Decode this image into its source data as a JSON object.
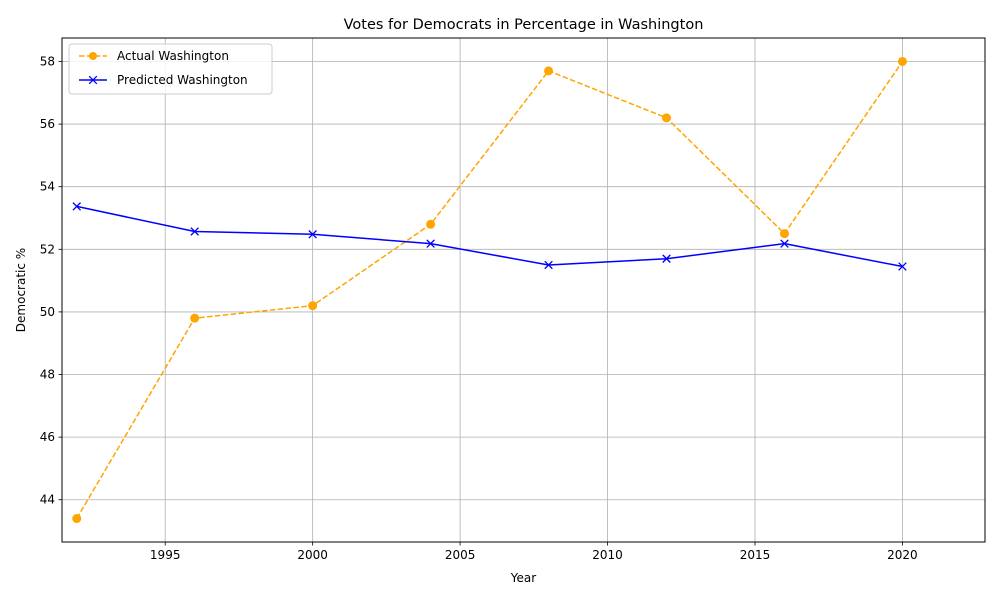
{
  "chart_data": {
    "type": "line",
    "title": "Votes for Democrats in Percentage in Washington",
    "xlabel": "Year",
    "ylabel": "Democratic %",
    "xlim": [
      1991.5,
      2022.8
    ],
    "ylim": [
      42.65,
      58.75
    ],
    "xticks": [
      1995,
      2000,
      2005,
      2010,
      2015,
      2020
    ],
    "yticks": [
      44,
      46,
      48,
      50,
      52,
      54,
      56,
      58
    ],
    "grid": true,
    "legend_position": "top-left",
    "series": [
      {
        "name": "Actual Washington",
        "color": "#ffa500",
        "line_style": "dashed",
        "marker": "circle",
        "x": [
          1992,
          1996,
          2000,
          2004,
          2008,
          2012,
          2016,
          2020
        ],
        "y": [
          43.4,
          49.8,
          50.2,
          52.8,
          57.7,
          56.2,
          52.5,
          58.0
        ]
      },
      {
        "name": "Predicted Washington",
        "color": "#0000ff",
        "line_style": "solid",
        "marker": "x",
        "x": [
          1992,
          1996,
          2000,
          2004,
          2008,
          2012,
          2016,
          2020
        ],
        "y": [
          53.37,
          52.57,
          52.48,
          52.18,
          51.5,
          51.7,
          52.18,
          51.45
        ]
      }
    ]
  }
}
